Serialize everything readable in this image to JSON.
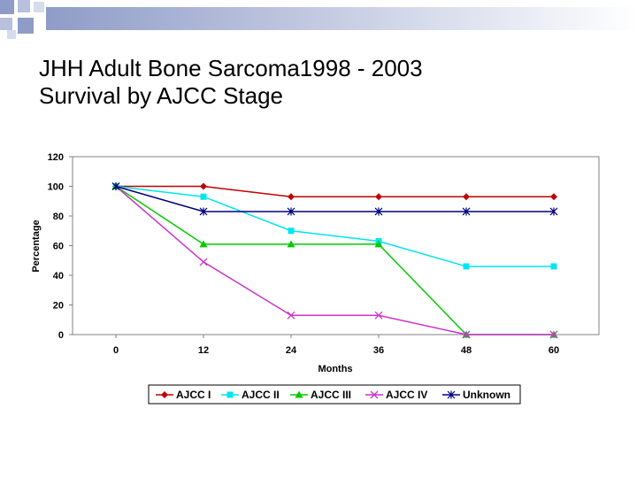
{
  "slide": {
    "title_line1": "JHH Adult Bone Sarcoma1998 - 2003",
    "title_line2": "Survival by AJCC Stage",
    "accent_color": "#9aa6d0"
  },
  "chart_data": {
    "type": "line",
    "title": "JHH Adult Bone Sarcoma1998 - 2003 Survival by AJCC Stage",
    "xlabel": "Months",
    "ylabel": "Percentage",
    "x": [
      0,
      12,
      24,
      36,
      48,
      60
    ],
    "x_tick_labels": [
      "0",
      "12",
      "24",
      "36",
      "48",
      "60"
    ],
    "ylim": [
      0,
      120
    ],
    "y_ticks": [
      0,
      20,
      40,
      60,
      80,
      100,
      120
    ],
    "y_tick_labels": [
      "0",
      "20",
      "40",
      "60",
      "80",
      "100",
      "120"
    ],
    "grid": false,
    "legend_position": "bottom",
    "series": [
      {
        "name": "AJCC I",
        "values": [
          100,
          100,
          93,
          93,
          93,
          93
        ],
        "color": "#c00000",
        "marker": "diamond"
      },
      {
        "name": "AJCC II",
        "values": [
          100,
          93,
          70,
          63,
          46,
          46
        ],
        "color": "#00e5f0",
        "marker": "square"
      },
      {
        "name": "AJCC III",
        "values": [
          100,
          61,
          61,
          61,
          0,
          0
        ],
        "color": "#00cc00",
        "marker": "triangle"
      },
      {
        "name": "AJCC IV",
        "values": [
          100,
          49,
          13,
          13,
          0,
          0
        ],
        "color": "#cc33cc",
        "marker": "x"
      },
      {
        "name": "Unknown",
        "values": [
          100,
          83,
          83,
          83,
          83,
          83
        ],
        "color": "#000080",
        "marker": "star"
      }
    ]
  }
}
